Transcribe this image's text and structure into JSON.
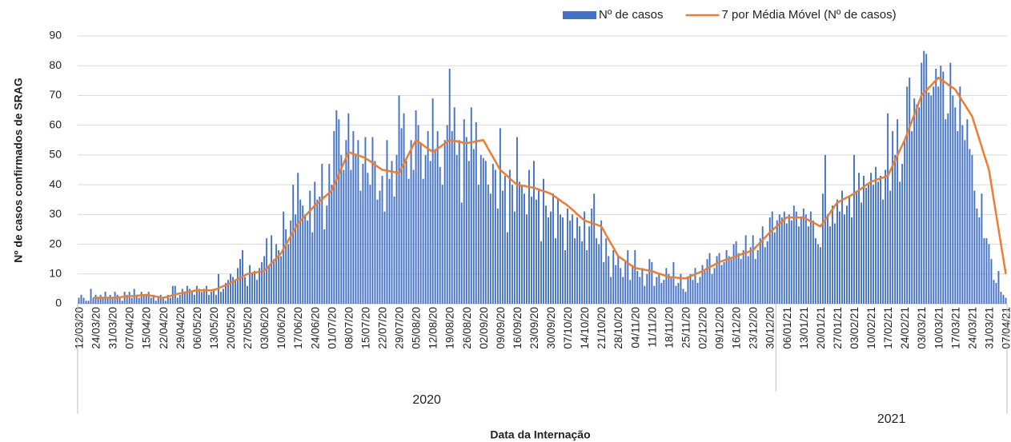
{
  "chart_data": {
    "type": "bar_line",
    "y_label": "Nº de casos confirmados de SRAG",
    "x_label": "Data da Internação",
    "ylim": [
      0,
      90
    ],
    "yticks": [
      0,
      10,
      20,
      30,
      40,
      50,
      60,
      70,
      80,
      90
    ],
    "grid": true,
    "legend": "top-right",
    "x_groups": [
      "2020",
      "2021"
    ],
    "categories": [
      "12/03/20",
      null,
      null,
      null,
      null,
      null,
      null,
      "24/03/20",
      null,
      null,
      null,
      null,
      null,
      null,
      "31/03/20",
      null,
      null,
      null,
      null,
      null,
      null,
      "07/04/20",
      null,
      null,
      null,
      null,
      null,
      null,
      "15/04/20",
      null,
      null,
      null,
      null,
      null,
      null,
      "22/04/20",
      null,
      null,
      null,
      null,
      null,
      null,
      "29/04/20",
      null,
      null,
      null,
      null,
      null,
      null,
      "06/05/20",
      null,
      null,
      null,
      null,
      null,
      null,
      "13/05/20",
      null,
      null,
      null,
      null,
      null,
      null,
      "20/05/20",
      null,
      null,
      null,
      null,
      null,
      null,
      "27/05/20",
      null,
      null,
      null,
      null,
      null,
      null,
      "03/06/20",
      null,
      null,
      null,
      null,
      null,
      null,
      "10/06/20",
      null,
      null,
      null,
      null,
      null,
      null,
      "17/06/20",
      null,
      null,
      null,
      null,
      null,
      null,
      "24/06/20",
      null,
      null,
      null,
      null,
      null,
      null,
      "01/07/20",
      null,
      null,
      null,
      null,
      null,
      null,
      "08/07/20",
      null,
      null,
      null,
      null,
      null,
      null,
      "15/07/20",
      null,
      null,
      null,
      null,
      null,
      null,
      "22/07/20",
      null,
      null,
      null,
      null,
      null,
      null,
      "29/07/20",
      null,
      null,
      null,
      null,
      null,
      null,
      "05/08/20",
      null,
      null,
      null,
      null,
      null,
      null,
      "12/08/20",
      null,
      null,
      null,
      null,
      null,
      null,
      "19/08/20",
      null,
      null,
      null,
      null,
      null,
      null,
      "26/08/20",
      null,
      null,
      null,
      null,
      null,
      null,
      "02/09/20",
      null,
      null,
      null,
      null,
      null,
      null,
      "09/09/20",
      null,
      null,
      null,
      null,
      null,
      null,
      "16/09/20",
      null,
      null,
      null,
      null,
      null,
      null,
      "23/09/20",
      null,
      null,
      null,
      null,
      null,
      null,
      "30/09/20",
      null,
      null,
      null,
      null,
      null,
      null,
      "07/10/20",
      null,
      null,
      null,
      null,
      null,
      null,
      "14/10/20",
      null,
      null,
      null,
      null,
      null,
      null,
      "21/10/20",
      null,
      null,
      null,
      null,
      null,
      null,
      "28/10/20",
      null,
      null,
      null,
      null,
      null,
      null,
      "04/11/20",
      null,
      null,
      null,
      null,
      null,
      null,
      "11/11/20",
      null,
      null,
      null,
      null,
      null,
      null,
      "18/11/20",
      null,
      null,
      null,
      null,
      null,
      null,
      "25/11/20",
      null,
      null,
      null,
      null,
      null,
      null,
      "02/12/20",
      null,
      null,
      null,
      null,
      null,
      null,
      "09/12/20",
      null,
      null,
      null,
      null,
      null,
      null,
      "16/12/20",
      null,
      null,
      null,
      null,
      null,
      null,
      "23/12/20",
      null,
      null,
      null,
      null,
      null,
      null,
      "30/12/20",
      null,
      null,
      null,
      null,
      null,
      null,
      "06/01/21",
      null,
      null,
      null,
      null,
      null,
      null,
      "13/01/21",
      null,
      null,
      null,
      null,
      null,
      null,
      "20/01/21",
      null,
      null,
      null,
      null,
      null,
      null,
      "27/01/21",
      null,
      null,
      null,
      null,
      null,
      null,
      "03/02/21",
      null,
      null,
      null,
      null,
      null,
      null,
      "10/02/21",
      null,
      null,
      null,
      null,
      null,
      null,
      "17/02/21",
      null,
      null,
      null,
      null,
      null,
      null,
      "24/02/21",
      null,
      null,
      null,
      null,
      null,
      null,
      "03/03/21",
      null,
      null,
      null,
      null,
      null,
      null,
      "10/03/21",
      null,
      null,
      null,
      null,
      null,
      null,
      "17/03/21",
      null,
      null,
      null,
      null,
      null,
      null,
      "24/03/21",
      null,
      null,
      null,
      null,
      null,
      null,
      "31/03/21",
      null,
      null,
      null,
      null,
      null,
      null,
      "07/04/21"
    ],
    "series": [
      {
        "name": "Nº de casos",
        "type": "bar",
        "color": "#4472c4",
        "values": [
          2,
          3,
          2,
          1,
          1,
          5,
          2,
          3,
          2,
          3,
          2,
          4,
          2,
          3,
          2,
          4,
          3,
          2,
          1,
          4,
          3,
          4,
          2,
          5,
          3,
          2,
          4,
          3,
          3,
          4,
          2,
          3,
          1,
          2,
          3,
          2,
          1,
          3,
          2,
          6,
          6,
          2,
          3,
          5,
          4,
          6,
          5,
          4,
          3,
          6,
          5,
          4,
          5,
          6,
          3,
          4,
          5,
          3,
          10,
          4,
          5,
          7,
          8,
          10,
          9,
          8,
          12,
          15,
          18,
          9,
          6,
          13,
          10,
          11,
          8,
          12,
          14,
          16,
          22,
          13,
          23,
          15,
          20,
          18,
          16,
          31,
          25,
          20,
          28,
          40,
          30,
          44,
          35,
          33,
          30,
          28,
          38,
          24,
          41,
          35,
          36,
          47,
          25,
          33,
          47,
          40,
          58,
          65,
          62,
          50,
          45,
          55,
          64,
          45,
          58,
          50,
          55,
          38,
          47,
          56,
          44,
          40,
          56,
          48,
          35,
          38,
          43,
          31,
          55,
          42,
          48,
          36,
          50,
          70,
          59,
          64,
          48,
          42,
          55,
          45,
          65,
          60,
          54,
          42,
          50,
          58,
          48,
          69,
          52,
          58,
          46,
          40,
          55,
          60,
          79,
          58,
          66,
          50,
          55,
          34,
          62,
          56,
          48,
          66,
          52,
          61,
          40,
          50,
          49,
          48,
          40,
          37,
          47,
          45,
          32,
          59,
          38,
          43,
          24,
          45,
          40,
          31,
          56,
          41,
          40,
          37,
          30,
          45,
          36,
          48,
          35,
          38,
          21,
          42,
          33,
          29,
          31,
          37,
          22,
          35,
          30,
          29,
          18,
          32,
          28,
          30,
          22,
          29,
          26,
          21,
          31,
          18,
          26,
          32,
          37,
          22,
          20,
          28,
          14,
          22,
          16,
          9,
          18,
          13,
          16,
          12,
          9,
          14,
          18,
          8,
          13,
          18,
          11,
          9,
          12,
          6,
          10,
          15,
          14,
          6,
          9,
          10,
          7,
          8,
          12,
          10,
          9,
          14,
          6,
          7,
          10,
          5,
          4,
          9,
          10,
          8,
          12,
          7,
          9,
          13,
          11,
          15,
          17,
          10,
          12,
          16,
          17,
          13,
          14,
          18,
          16,
          15,
          20,
          21,
          17,
          15,
          18,
          23,
          16,
          19,
          23,
          15,
          18,
          22,
          26,
          19,
          21,
          29,
          31,
          24,
          28,
          30,
          29,
          31,
          27,
          30,
          28,
          33,
          31,
          26,
          29,
          32,
          30,
          26,
          31,
          28,
          22,
          20,
          19,
          37,
          50,
          30,
          26,
          33,
          27,
          35,
          31,
          38,
          30,
          33,
          36,
          29,
          50,
          38,
          44,
          34,
          43,
          39,
          40,
          44,
          40,
          46,
          41,
          43,
          35,
          45,
          64,
          38,
          58,
          50,
          62,
          41,
          47,
          55,
          73,
          76,
          58,
          69,
          67,
          66,
          81,
          85,
          84,
          71,
          70,
          73,
          79,
          73,
          80,
          78,
          62,
          64,
          81,
          70,
          66,
          58,
          73,
          60,
          55,
          62,
          52,
          50,
          38,
          32,
          29,
          37,
          22,
          22,
          20,
          15,
          8,
          7,
          11,
          4,
          3,
          2
        ]
      },
      {
        "name": "7 por Média Móvel (Nº de casos)",
        "type": "line",
        "color": "#ed7d31",
        "values": [
          null,
          null,
          null,
          null,
          null,
          null,
          2,
          2,
          2,
          2,
          2,
          2,
          2,
          2,
          2,
          2.1,
          2.1,
          2.2,
          2.3,
          2.4,
          2.4,
          2.5,
          2.6,
          2.6,
          2.7,
          2.8,
          2.9,
          2.9,
          3,
          2.9,
          2.7,
          2.6,
          2.4,
          2.3,
          2.1,
          2,
          2.2,
          2.4,
          2.6,
          2.9,
          3.1,
          3.3,
          3.5,
          3.6,
          3.8,
          3.9,
          4.1,
          4.2,
          4.4,
          4.5,
          4.5,
          4.5,
          4.5,
          4.5,
          4.5,
          4.5,
          4.5,
          4.9,
          5.2,
          5.6,
          5.9,
          6.3,
          6.6,
          7,
          7.4,
          7.9,
          8.3,
          8.7,
          9.1,
          9.6,
          10,
          10.1,
          10.3,
          10.4,
          10.6,
          10.7,
          10.9,
          11,
          11.9,
          12.7,
          13.6,
          14.4,
          15.3,
          16.1,
          17,
          18.4,
          19.9,
          21.3,
          22.7,
          24.1,
          25.6,
          27,
          27.9,
          28.7,
          29.6,
          30.4,
          31.3,
          32.1,
          33,
          33.7,
          34.4,
          35.1,
          35.9,
          36.6,
          37.3,
          38,
          39.9,
          41.7,
          43.6,
          45.4,
          47.3,
          49.1,
          51,
          50.7,
          50.4,
          50.1,
          49.9,
          49.6,
          49.3,
          49,
          48.4,
          47.9,
          47.3,
          46.7,
          46.1,
          45.6,
          45,
          44.9,
          44.7,
          44.6,
          44.4,
          44.3,
          44.1,
          44,
          45.6,
          47.1,
          48.7,
          50.3,
          51.9,
          53.4,
          55,
          54.4,
          53.9,
          53.3,
          52.7,
          52.1,
          51.6,
          51,
          51.6,
          52.1,
          52.7,
          53.3,
          53.9,
          54.4,
          55,
          54.9,
          54.7,
          54.6,
          54.4,
          54.3,
          54.1,
          54,
          54.1,
          54.3,
          54.4,
          54.6,
          54.7,
          54.9,
          55,
          53.6,
          52.1,
          50.7,
          49.3,
          47.9,
          46.4,
          45,
          44.3,
          43.6,
          42.9,
          42.1,
          41.4,
          40.7,
          40,
          39.9,
          39.7,
          39.6,
          39.4,
          39.3,
          39.1,
          39,
          38.7,
          38.4,
          38.1,
          37.9,
          37.6,
          37.3,
          37,
          36.4,
          35.9,
          35.3,
          34.7,
          34.1,
          33.6,
          33,
          32.3,
          31.6,
          30.9,
          30.1,
          29.4,
          28.7,
          28,
          27.7,
          27.4,
          27.1,
          26.9,
          26.6,
          26.3,
          26,
          24.6,
          23.1,
          21.7,
          20.3,
          18.9,
          17.4,
          16,
          15.4,
          14.9,
          14.3,
          13.7,
          13.1,
          12.6,
          12,
          11.9,
          11.7,
          11.6,
          11.4,
          11.3,
          11.1,
          11,
          10.7,
          10.4,
          10.1,
          9.9,
          9.6,
          9.3,
          9,
          8.9,
          8.9,
          8.8,
          8.7,
          8.6,
          8.6,
          8.5,
          8.9,
          9.2,
          9.6,
          9.9,
          10.3,
          10.6,
          11,
          11.4,
          11.9,
          12.3,
          12.7,
          13.1,
          13.6,
          14,
          14.3,
          14.6,
          14.9,
          15.1,
          15.4,
          15.7,
          16,
          16.3,
          16.6,
          16.9,
          17.1,
          17.4,
          17.7,
          18,
          18.9,
          19.7,
          20.6,
          21.4,
          22.3,
          23.1,
          24,
          24.7,
          25.4,
          26.1,
          26.9,
          27.6,
          28.3,
          29,
          29,
          29,
          29,
          29,
          29,
          29,
          29,
          28.6,
          28.1,
          27.7,
          27.3,
          26.9,
          26.4,
          26,
          27.1,
          28.3,
          29.4,
          30.6,
          31.7,
          32.9,
          34,
          34.4,
          34.9,
          35.3,
          35.7,
          36.1,
          36.6,
          37,
          37.6,
          38.1,
          38.7,
          39.3,
          39.9,
          40.4,
          41,
          41.3,
          41.6,
          41.9,
          42.1,
          42.4,
          42.7,
          43,
          44.7,
          46.4,
          48.1,
          49.9,
          51.6,
          53.3,
          55,
          57.1,
          59.3,
          61.4,
          63.6,
          65.7,
          67.9,
          70,
          70.9,
          71.7,
          72.6,
          73.4,
          74.3,
          75.1,
          76,
          75.4,
          74.9,
          74.3,
          73.7,
          73.1,
          72.6,
          72,
          70.7,
          69.4,
          68.1,
          66.9,
          65.6,
          64.3,
          63,
          60.4,
          57.9,
          55.3,
          52.7,
          50.1,
          47.6,
          45,
          40,
          35,
          30,
          25,
          20,
          15,
          10
        ]
      }
    ]
  }
}
